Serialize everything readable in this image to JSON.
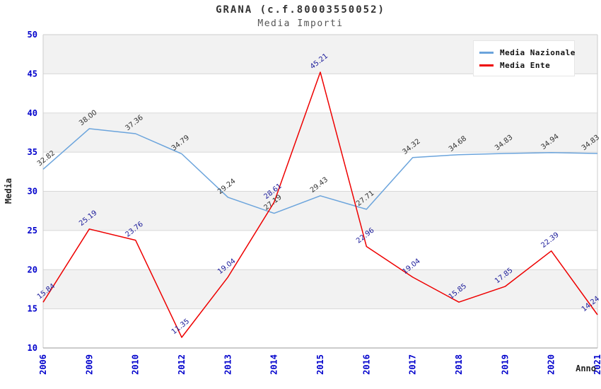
{
  "chart_data": {
    "type": "line",
    "title": "GRANA (c.f.80003550052)",
    "subtitle": "Media Importi",
    "xlabel": "Anno",
    "ylabel": "Media",
    "categories": [
      "2006",
      "2009",
      "2010",
      "2012",
      "2013",
      "2014",
      "2015",
      "2016",
      "2017",
      "2018",
      "2019",
      "2020",
      "2021"
    ],
    "series": [
      {
        "name": "Media Nazionale",
        "color": "#6ba4dc",
        "label_color": "#333333",
        "values": [
          32.82,
          38.0,
          37.36,
          34.79,
          29.24,
          27.19,
          29.43,
          27.71,
          34.32,
          34.68,
          34.83,
          34.94,
          34.83
        ]
      },
      {
        "name": "Media Ente",
        "color": "#ee0000",
        "label_color": "#1a1a99",
        "values": [
          15.84,
          25.19,
          23.76,
          11.35,
          19.04,
          28.61,
          45.21,
          22.96,
          19.04,
          15.85,
          17.85,
          22.39,
          14.24
        ]
      }
    ],
    "ylim": [
      10,
      50
    ],
    "ytick_step": 5,
    "grid": true,
    "band_color": "#f2f2f2",
    "gridline_color": "#d8d8d8",
    "axis_line_color": "#9a9a9a",
    "plot_border_color": "#cccccc",
    "tick_label_color": "#0000cc",
    "legend_position": "top-right"
  }
}
